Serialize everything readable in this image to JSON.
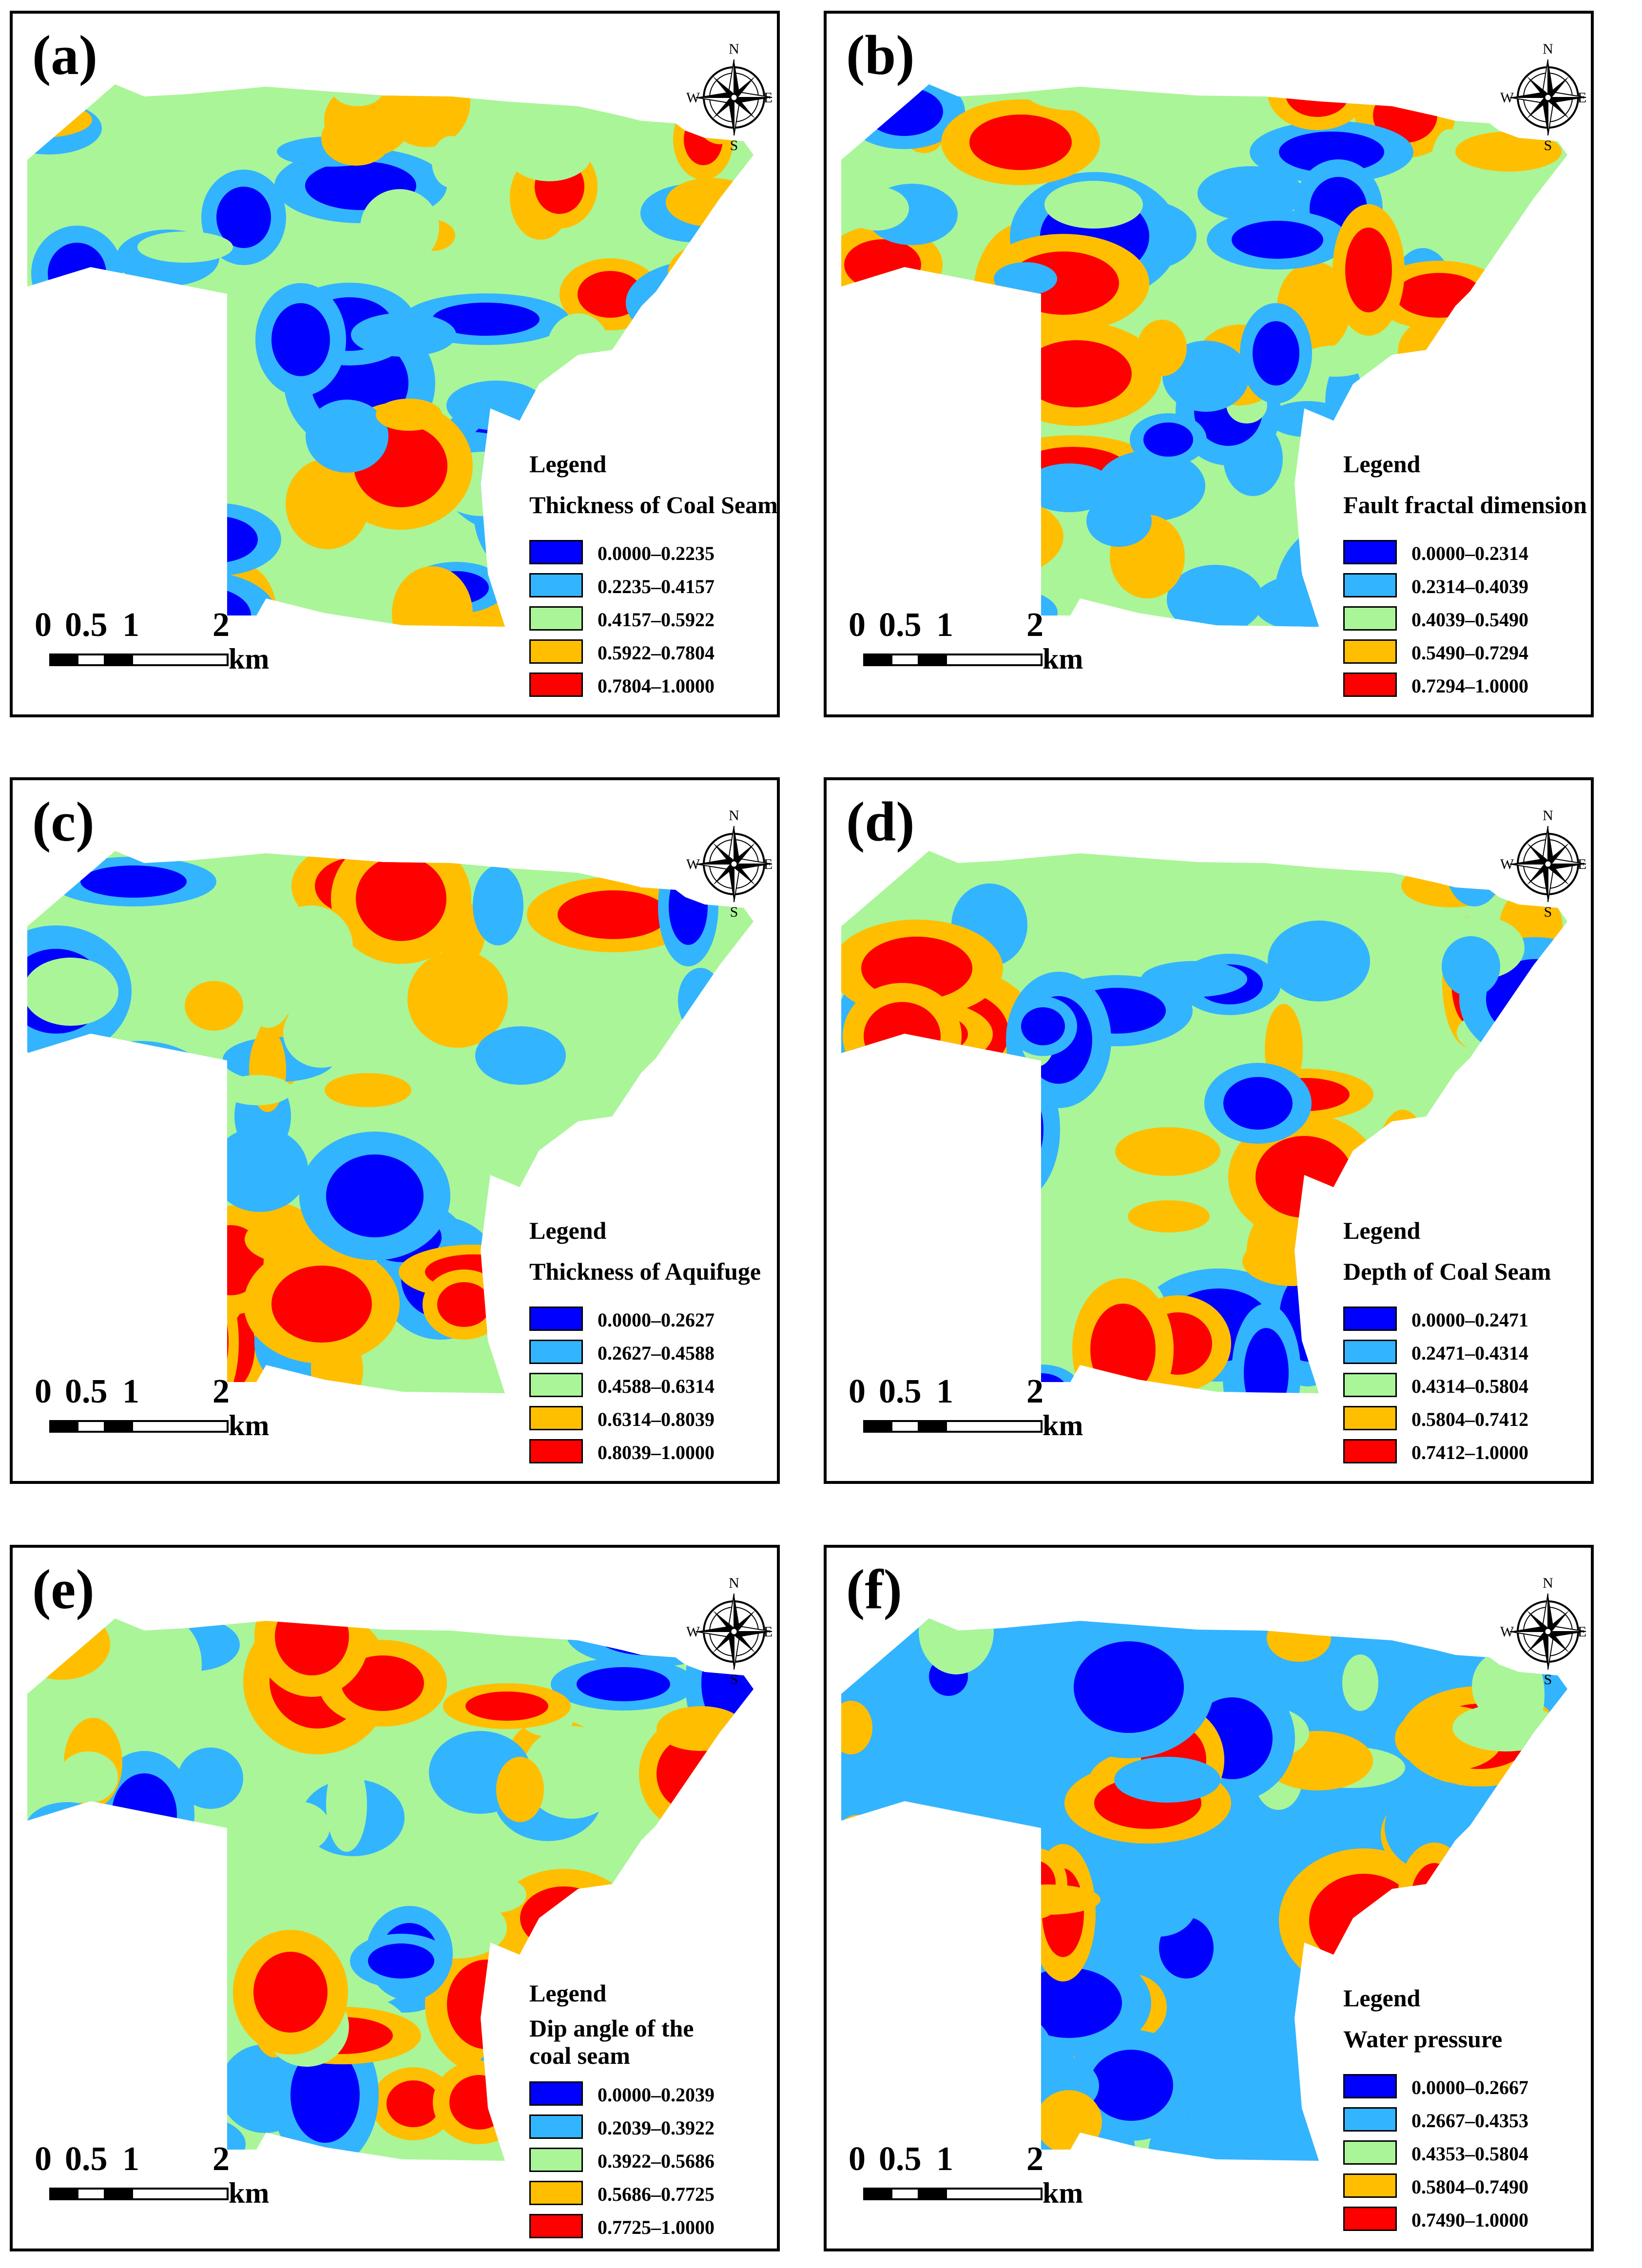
{
  "figure": {
    "compass": {
      "north": "N",
      "south": "S",
      "east": "E",
      "west": "W"
    },
    "scale_bar": {
      "ticks": [
        "0",
        "0.5",
        "1",
        "2"
      ],
      "unit": "km"
    },
    "legend_colors": [
      "#0000ff",
      "#33b4ff",
      "#aaf598",
      "#ffbf00",
      "#ff0000"
    ],
    "panels": [
      {
        "label": "(a)",
        "legend_title": "Legend",
        "variable": "Thickness of Coal Seam",
        "classes": [
          "0.0000–0.2235",
          "0.2235–0.4157",
          "0.4157–0.5922",
          "0.5922–0.7804",
          "0.7804–1.0000"
        ]
      },
      {
        "label": "(b)",
        "legend_title": "Legend",
        "variable": "Fault fractal dimension",
        "classes": [
          "0.0000–0.2314",
          "0.2314–0.4039",
          "0.4039–0.5490",
          "0.5490–0.7294",
          "0.7294–1.0000"
        ]
      },
      {
        "label": "(c)",
        "legend_title": "Legend",
        "variable": "Thickness of Aquifuge",
        "classes": [
          "0.0000–0.2627",
          "0.2627–0.4588",
          "0.4588–0.6314",
          "0.6314–0.8039",
          "0.8039–1.0000"
        ]
      },
      {
        "label": "(d)",
        "legend_title": "Legend",
        "variable": "Depth of Coal Seam",
        "classes": [
          "0.0000–0.2471",
          "0.2471–0.4314",
          "0.4314–0.5804",
          "0.5804–0.7412",
          "0.7412–1.0000"
        ]
      },
      {
        "label": "(e)",
        "legend_title": "Legend",
        "variable": "Dip angle of the coal seam",
        "classes": [
          "0.0000–0.2039",
          "0.2039–0.3922",
          "0.3922–0.5686",
          "0.5686–0.7725",
          "0.7725–1.0000"
        ]
      },
      {
        "label": "(f)",
        "legend_title": "Legend",
        "variable": "Water pressure",
        "classes": [
          "0.0000–0.2667",
          "0.2667–0.4353",
          "0.4353–0.5804",
          "0.5804–0.7490",
          "0.7490–1.0000"
        ]
      }
    ]
  }
}
